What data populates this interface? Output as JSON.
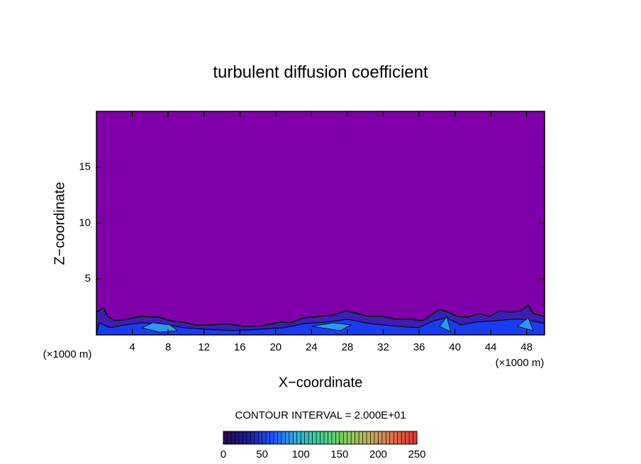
{
  "chart_data": {
    "type": "contour",
    "title": "turbulent diffusion coefficient",
    "x_label": "X−coordinate",
    "y_label": "Z−coordinate",
    "x_unit_label": "(×1000 m)",
    "x_unit_label_right": "(×1000 m)",
    "contour_interval_label": "CONTOUR INTERVAL = 2.000E+01",
    "xlim": [
      0,
      50
    ],
    "xticks": [
      4,
      8,
      12,
      16,
      20,
      24,
      28,
      32,
      36,
      40,
      44,
      48
    ],
    "ylim": [
      0,
      20
    ],
    "yticks": [
      5,
      10,
      15
    ],
    "field_color": "#7f00a8",
    "colorbar": {
      "lim": [
        0,
        250
      ],
      "ticks": [
        0,
        50,
        100,
        150,
        200,
        250
      ],
      "colors": [
        "#2a0a4a",
        "#1a1a9a",
        "#2050ff",
        "#30b0e0",
        "#40d090",
        "#80d060",
        "#c0b060",
        "#e07050",
        "#e03030"
      ]
    }
  }
}
